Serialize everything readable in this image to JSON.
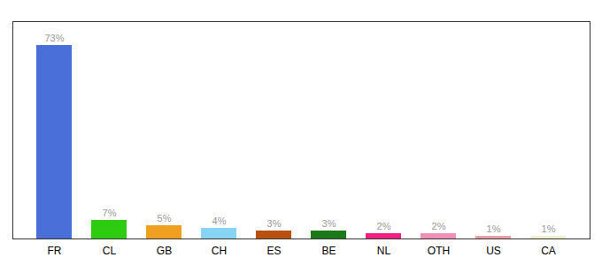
{
  "chart_data": {
    "type": "bar",
    "categories": [
      "FR",
      "CL",
      "GB",
      "CH",
      "ES",
      "BE",
      "NL",
      "OTH",
      "US",
      "CA"
    ],
    "values": [
      73,
      7,
      5,
      4,
      3,
      3,
      2,
      2,
      1,
      1
    ],
    "value_labels": [
      "73%",
      "7%",
      "5%",
      "4%",
      "3%",
      "3%",
      "2%",
      "2%",
      "1%",
      "1%"
    ],
    "colors": [
      "#4a6fd8",
      "#2ecc10",
      "#f0a020",
      "#88d4f4",
      "#b85010",
      "#1a7a1a",
      "#f02080",
      "#f090b8",
      "#e8a0a8",
      "#f0f0d0"
    ],
    "ylim": [
      0,
      82
    ],
    "data_labels": true,
    "tick_labels": "x",
    "grid": false
  }
}
